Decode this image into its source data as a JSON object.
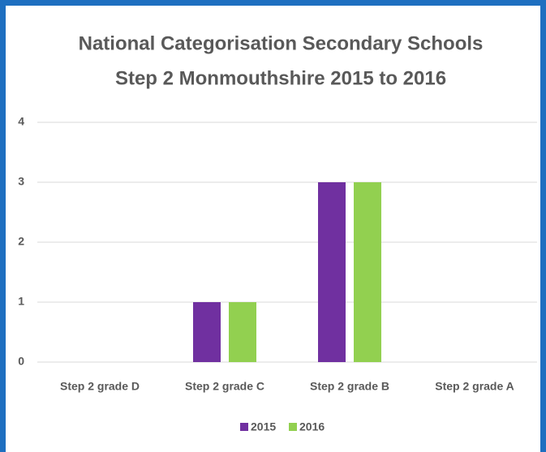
{
  "chart_data": {
    "type": "bar",
    "title": [
      "National Categorisation Secondary Schools",
      "Step 2 Monmouthshire 2015 to 2016"
    ],
    "categories": [
      "Step 2 grade D",
      "Step 2 grade C",
      "Step 2 grade B",
      "Step 2 grade A"
    ],
    "series": [
      {
        "name": "2015",
        "color": "#7030a0",
        "values": [
          0,
          1,
          3,
          0
        ]
      },
      {
        "name": "2016",
        "color": "#92d050",
        "values": [
          0,
          1,
          3,
          0
        ]
      }
    ],
    "ylim": [
      0,
      4
    ],
    "yticks": [
      0,
      1,
      2,
      3,
      4
    ],
    "grid": true,
    "legend": "bottom"
  }
}
